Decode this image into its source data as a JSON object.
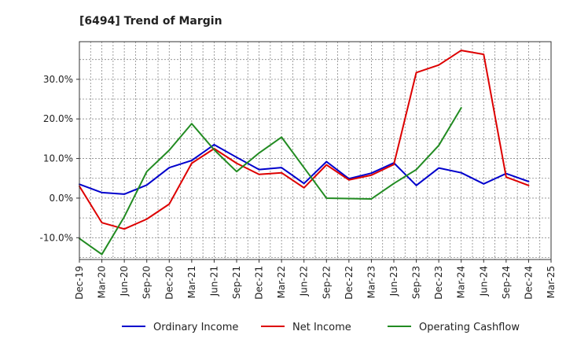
{
  "chart_data": {
    "type": "line",
    "title": "[6494]  Trend of Margin",
    "xlabel": "",
    "ylabel": "",
    "ylim": [
      -15.5,
      39.5
    ],
    "y_ticks": [
      -10,
      0,
      10,
      20,
      30
    ],
    "y_tick_labels": [
      "-10.0%",
      "0.0%",
      "10.0%",
      "20.0%",
      "30.0%"
    ],
    "x": [
      "Dec-19",
      "Mar-20",
      "Jun-20",
      "Sep-20",
      "Dec-20",
      "Mar-21",
      "Jun-21",
      "Sep-21",
      "Dec-21",
      "Mar-22",
      "Jun-22",
      "Sep-22",
      "Dec-22",
      "Mar-23",
      "Jun-23",
      "Sep-23",
      "Dec-23",
      "Mar-24",
      "Jun-24",
      "Sep-24",
      "Dec-24",
      "Mar-25"
    ],
    "grid": true,
    "legend_position": "bottom",
    "series": [
      {
        "name": "Ordinary Income",
        "color": "#0000cc",
        "values": [
          3.5,
          1.4,
          1.0,
          3.3,
          7.7,
          9.5,
          13.5,
          10.3,
          7.2,
          7.7,
          3.7,
          9.2,
          4.9,
          6.3,
          8.9,
          3.2,
          7.6,
          6.4,
          3.6,
          6.2,
          4.2,
          null
        ]
      },
      {
        "name": "Net Income",
        "color": "#dd0000",
        "values": [
          3.0,
          -6.2,
          -7.8,
          -5.3,
          -1.5,
          8.8,
          12.5,
          8.8,
          6.0,
          6.4,
          2.6,
          8.4,
          4.6,
          5.8,
          8.5,
          31.7,
          33.6,
          37.3,
          36.3,
          5.3,
          3.2,
          null
        ]
      },
      {
        "name": "Operating Cashflow",
        "color": "#228b22",
        "values": [
          -10.2,
          -14.2,
          -4.7,
          6.7,
          12.1,
          18.8,
          12.2,
          6.7,
          11.4,
          15.4,
          7.7,
          0.0,
          -0.1,
          -0.2,
          3.7,
          7.2,
          13.3,
          22.8,
          null,
          null,
          null,
          null
        ]
      }
    ]
  }
}
